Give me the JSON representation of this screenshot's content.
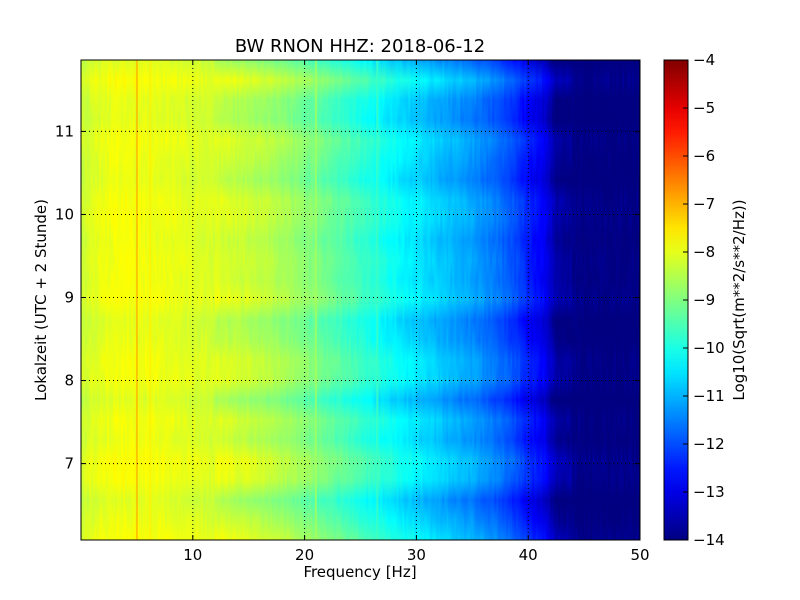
{
  "chart_data": {
    "type": "heatmap",
    "title": "BW RNON HHZ: 2018-06-12",
    "xlabel": "Frequency [Hz]",
    "ylabel": "Lokalzeit (UTC + 2 Stunde)",
    "xlim": [
      0,
      50
    ],
    "ylim": [
      11.86,
      6.08
    ],
    "y_inverted": true,
    "x_ticks": [
      10,
      20,
      30,
      40,
      50
    ],
    "y_ticks": [
      7,
      8,
      9,
      10,
      11
    ],
    "grid": true,
    "grid_style": "dotted",
    "colormap": "jet",
    "colorbar": {
      "label": "Log10(Sqrt(m**2/s**2/Hz))",
      "range": [
        -14,
        -4
      ],
      "ticks": [
        -4,
        -5,
        -6,
        -7,
        -8,
        -9,
        -10,
        -11,
        -12,
        -13,
        -14
      ]
    },
    "mean_spectrum": {
      "frequency_hz": [
        0,
        1,
        3,
        5,
        8,
        10,
        12,
        15,
        18,
        20,
        22,
        25,
        28,
        30,
        32,
        35,
        37,
        39,
        40,
        41.5,
        42.5,
        45,
        50
      ],
      "log10_amplitude": [
        -8.3,
        -8.1,
        -7.9,
        -7.9,
        -8.0,
        -8.1,
        -8.2,
        -8.4,
        -8.7,
        -9.0,
        -9.3,
        -9.8,
        -10.3,
        -10.6,
        -10.9,
        -11.3,
        -11.7,
        -12.2,
        -12.6,
        -13.0,
        -13.8,
        -14.0,
        -14.0
      ]
    },
    "spectral_lines": [
      {
        "frequency_hz": 5.0,
        "log10_amplitude": -7.0
      },
      {
        "frequency_hz": 6.2,
        "log10_amplitude": -7.6
      },
      {
        "frequency_hz": 21.0,
        "log10_amplitude": -8.6
      },
      {
        "frequency_hz": 26.5,
        "log10_amplitude": -9.6
      }
    ]
  }
}
